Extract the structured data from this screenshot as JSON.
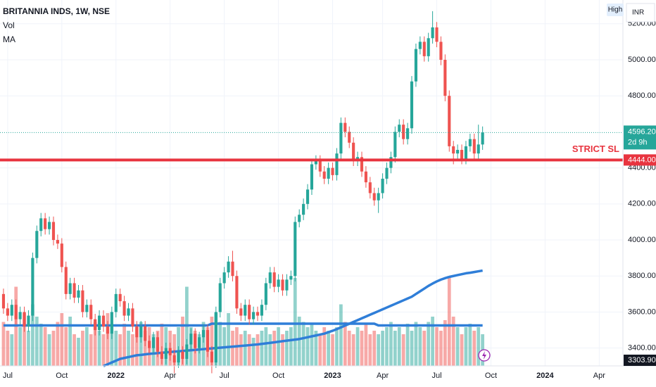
{
  "chart_data": {
    "type": "candlestick",
    "title": "BRITANNIA INDS, 1W, NSE",
    "indicators": [
      "Vol",
      "MA"
    ],
    "button": "High",
    "currency": "INR",
    "categories": [
      null,
      "Jul",
      null,
      null,
      null,
      null,
      null,
      null,
      null,
      null,
      null,
      null,
      null,
      null,
      "Oct",
      null,
      null,
      null,
      null,
      null,
      null,
      null,
      null,
      null,
      null,
      null,
      null,
      "2022",
      null,
      null,
      null,
      null,
      null,
      null,
      null,
      null,
      null,
      null,
      null,
      null,
      "Apr",
      null,
      null,
      null,
      null,
      null,
      null,
      null,
      null,
      null,
      null,
      null,
      null,
      "Jul",
      null,
      null,
      null,
      null,
      null,
      null,
      null,
      null,
      null,
      null,
      null,
      null,
      "Oct",
      null,
      null,
      null,
      null,
      null,
      null,
      null,
      null,
      null,
      null,
      null,
      null,
      "2023",
      null,
      null,
      null,
      null,
      null,
      null,
      null,
      null,
      null,
      null,
      null,
      "Apr",
      null,
      null,
      null,
      null,
      null,
      null,
      null,
      null,
      null,
      null,
      null,
      null,
      "Jul",
      null,
      null,
      null,
      null,
      null,
      null,
      null,
      null,
      null,
      null,
      null,
      null,
      "Oct",
      null,
      null,
      null,
      null,
      null,
      null,
      null,
      null,
      null,
      null,
      null,
      null,
      "2024",
      null,
      null,
      null,
      null,
      null,
      null,
      null,
      null,
      null,
      null,
      null,
      null,
      "Apr",
      null,
      null,
      null,
      null
    ],
    "open": [
      3700,
      3620,
      3580,
      3640,
      3560,
      3600,
      3520,
      3580,
      3900,
      4050,
      4120,
      4060,
      4100,
      4000,
      3980,
      3850,
      3700,
      3760,
      3680,
      3720,
      3600,
      3640,
      3560,
      3500,
      3580,
      3520,
      3480,
      3600,
      3700,
      3660,
      3580,
      3620,
      3520,
      3460,
      3520,
      3440,
      3400,
      3460,
      3380,
      3340,
      3400,
      3360,
      3320,
      3380,
      3340,
      3420,
      3480,
      3400,
      3460,
      3500,
      3380,
      3320,
      3600,
      3760,
      3820,
      3880,
      3800,
      3620,
      3580,
      3640,
      3560,
      3600,
      3580,
      3640,
      3760,
      3820,
      3740,
      3780,
      3720,
      3780,
      3800,
      4100,
      4140,
      4200,
      4280,
      4420,
      4440,
      4380,
      4340,
      4400,
      4360,
      4480,
      4650,
      4600,
      4540,
      4440,
      4460,
      4380,
      4320,
      4260,
      4220,
      4260,
      4340,
      4400,
      4460,
      4600,
      4640,
      4560,
      4620,
      4880,
      5060,
      5100,
      5020,
      5120,
      5180,
      5100,
      5000,
      4800,
      4520,
      4480,
      4500,
      4450,
      4520,
      4560,
      4480,
      4530,
      null,
      null,
      null,
      null,
      null,
      null,
      null,
      null,
      null,
      null,
      null,
      null,
      null,
      null,
      null,
      null,
      null,
      null,
      null,
      null,
      null,
      null,
      null,
      null,
      null,
      null,
      null,
      null,
      null,
      null,
      null,
      null
    ],
    "high": [
      3730,
      3650,
      3670,
      3670,
      3630,
      3630,
      3610,
      3930,
      4080,
      4150,
      4150,
      4130,
      4130,
      4030,
      4010,
      3880,
      3790,
      3790,
      3750,
      3750,
      3670,
      3670,
      3590,
      3610,
      3610,
      3550,
      3630,
      3730,
      3730,
      3690,
      3650,
      3650,
      3550,
      3550,
      3550,
      3470,
      3490,
      3490,
      3410,
      3430,
      3430,
      3390,
      3410,
      3410,
      3450,
      3510,
      3510,
      3490,
      3530,
      3530,
      3410,
      3630,
      3790,
      3850,
      3910,
      3940,
      3830,
      3650,
      3670,
      3670,
      3630,
      3630,
      3670,
      3790,
      3850,
      3850,
      3810,
      3810,
      3810,
      3830,
      4130,
      4170,
      4230,
      4310,
      4450,
      4470,
      4470,
      4410,
      4430,
      4430,
      4510,
      4680,
      4680,
      4630,
      4570,
      4490,
      4490,
      4410,
      4350,
      4290,
      4290,
      4370,
      4430,
      4490,
      4630,
      4670,
      4670,
      4650,
      4910,
      5090,
      5130,
      5130,
      5150,
      5270,
      5210,
      5130,
      5030,
      4830,
      4550,
      4530,
      4530,
      4550,
      4590,
      4590,
      4640,
      4630,
      null,
      null,
      null,
      null,
      null,
      null,
      null,
      null,
      null,
      null,
      null,
      null,
      null,
      null,
      null,
      null,
      null,
      null,
      null,
      null,
      null,
      null,
      null,
      null,
      null,
      null,
      null,
      null,
      null,
      null,
      null,
      null
    ],
    "low": [
      3590,
      3550,
      3550,
      3530,
      3530,
      3490,
      3490,
      3550,
      3870,
      4020,
      4030,
      4030,
      3970,
      3950,
      3820,
      3670,
      3670,
      3650,
      3650,
      3570,
      3570,
      3530,
      3470,
      3470,
      3490,
      3450,
      3450,
      3570,
      3630,
      3550,
      3550,
      3490,
      3430,
      3430,
      3410,
      3370,
      3370,
      3350,
      3310,
      3310,
      3330,
      3260,
      3290,
      3310,
      3310,
      3390,
      3370,
      3370,
      3430,
      3350,
      3260,
      3290,
      3570,
      3730,
      3790,
      3770,
      3590,
      3550,
      3550,
      3530,
      3530,
      3550,
      3550,
      3610,
      3730,
      3710,
      3710,
      3690,
      3690,
      3750,
      3770,
      4070,
      4110,
      4170,
      4250,
      4390,
      4350,
      4310,
      4310,
      4330,
      4330,
      4450,
      4570,
      4510,
      4410,
      4410,
      4350,
      4290,
      4230,
      4190,
      4150,
      4230,
      4310,
      4370,
      4430,
      4570,
      4530,
      4530,
      4590,
      4850,
      5030,
      4990,
      4990,
      5090,
      5070,
      4970,
      4770,
      4490,
      4420,
      4450,
      4420,
      4420,
      4490,
      4450,
      4450,
      4500,
      null,
      null,
      null,
      null,
      null,
      null,
      null,
      null,
      null,
      null,
      null,
      null,
      null,
      null,
      null,
      null,
      null,
      null,
      null,
      null,
      null,
      null,
      null,
      null,
      null,
      null,
      null,
      null,
      null,
      null,
      null,
      null
    ],
    "close": [
      3620,
      3580,
      3640,
      3560,
      3600,
      3520,
      3580,
      3900,
      4050,
      4120,
      4060,
      4100,
      4000,
      3980,
      3850,
      3700,
      3760,
      3680,
      3720,
      3600,
      3640,
      3560,
      3500,
      3580,
      3520,
      3480,
      3600,
      3700,
      3660,
      3580,
      3620,
      3520,
      3460,
      3520,
      3440,
      3400,
      3460,
      3380,
      3340,
      3400,
      3360,
      3320,
      3380,
      3340,
      3420,
      3480,
      3400,
      3460,
      3500,
      3380,
      3320,
      3600,
      3760,
      3820,
      3880,
      3800,
      3620,
      3580,
      3640,
      3560,
      3600,
      3580,
      3640,
      3760,
      3820,
      3740,
      3780,
      3720,
      3780,
      3800,
      4100,
      4140,
      4200,
      4280,
      4420,
      4440,
      4380,
      4340,
      4400,
      4360,
      4480,
      4650,
      4600,
      4540,
      4440,
      4460,
      4380,
      4320,
      4260,
      4220,
      4260,
      4340,
      4400,
      4460,
      4600,
      4640,
      4560,
      4620,
      4880,
      5060,
      5100,
      5020,
      5120,
      5180,
      5100,
      5000,
      4800,
      4520,
      4480,
      4500,
      4450,
      4520,
      4560,
      4480,
      4530,
      4596.2,
      null,
      null,
      null,
      null,
      null,
      null,
      null,
      null,
      null,
      null,
      null,
      null,
      null,
      null,
      null,
      null,
      null,
      null,
      null,
      null,
      null,
      null,
      null,
      null,
      null,
      null,
      null,
      null,
      null,
      null,
      null,
      null
    ],
    "up_color": "#26a69a",
    "down_color": "#ef5350",
    "volume": {
      "ylim": [
        0,
        100
      ],
      "up_color": "rgba(38,166,154,0.5)",
      "down_color": "rgba(239,83,80,0.5)",
      "values": [
        25,
        20,
        18,
        45,
        22,
        30,
        20,
        35,
        28,
        24,
        22,
        18,
        20,
        25,
        30,
        22,
        28,
        18,
        16,
        20,
        22,
        18,
        25,
        20,
        18,
        30,
        22,
        20,
        18,
        24,
        20,
        18,
        22,
        25,
        20,
        22,
        18,
        20,
        24,
        22,
        20,
        18,
        22,
        28,
        45,
        22,
        20,
        18,
        25,
        22,
        28,
        30,
        25,
        22,
        30,
        20,
        22,
        18,
        20,
        18,
        16,
        18,
        20,
        22,
        18,
        20,
        22,
        18,
        20,
        22,
        50,
        28,
        25,
        22,
        24,
        20,
        18,
        22,
        20,
        18,
        22,
        35,
        25,
        20,
        18,
        22,
        20,
        24,
        18,
        20,
        18,
        20,
        22,
        25,
        20,
        22,
        18,
        24,
        20,
        25,
        22,
        20,
        25,
        28,
        22,
        20,
        26,
        50,
        28,
        22,
        18,
        22,
        24,
        20,
        22,
        18,
        null,
        null,
        null,
        null,
        null,
        null,
        null,
        null,
        null,
        null,
        null,
        null,
        null,
        null,
        null,
        null,
        null,
        null,
        null,
        null,
        null,
        null,
        null,
        null,
        null,
        null,
        null,
        null,
        null,
        null,
        null,
        null
      ]
    },
    "volume_ma": {
      "color": "#2f7ed8",
      "values": [
        23,
        23,
        23,
        23,
        23,
        23,
        23,
        23,
        23,
        23,
        23,
        23,
        23,
        23,
        23,
        23,
        23,
        23,
        23,
        23,
        23,
        23,
        23,
        23,
        23,
        23,
        23,
        23,
        23,
        23,
        23,
        23,
        23,
        23,
        23,
        23,
        23,
        23,
        23,
        23,
        23,
        23,
        23,
        23,
        23,
        23,
        23,
        23,
        23,
        23,
        24,
        24,
        24,
        24,
        24,
        24,
        24,
        24,
        24,
        24,
        24,
        24,
        24,
        24,
        24,
        24,
        24,
        24,
        24,
        24,
        24,
        24,
        24,
        24,
        24,
        24,
        24,
        24,
        24,
        24,
        24,
        24,
        24,
        24,
        24,
        24,
        24,
        24,
        24,
        24,
        23,
        23,
        23,
        23,
        23,
        23,
        23,
        23,
        23,
        23,
        23,
        23,
        23,
        23,
        23,
        23,
        23,
        23,
        23,
        23,
        23,
        23,
        23,
        23,
        23,
        23,
        null,
        null,
        null,
        null,
        null,
        null,
        null,
        null,
        null,
        null,
        null,
        null,
        null,
        null,
        null,
        null,
        null,
        null,
        null,
        null,
        null,
        null,
        null,
        null,
        null,
        null,
        null,
        null,
        null,
        null,
        null,
        null
      ]
    },
    "ma": {
      "color": "#2f7ed8",
      "values": [
        null,
        null,
        null,
        null,
        null,
        null,
        null,
        null,
        null,
        null,
        null,
        null,
        null,
        null,
        null,
        null,
        null,
        null,
        null,
        null,
        null,
        null,
        null,
        null,
        3300,
        3310,
        3320,
        3330,
        3340,
        3345,
        3350,
        3355,
        3360,
        3362,
        3365,
        3368,
        3370,
        3372,
        3374,
        3376,
        3378,
        3380,
        3382,
        3384,
        3386,
        3388,
        3390,
        3392,
        3394,
        3396,
        3398,
        3400,
        3402,
        3404,
        3406,
        3408,
        3410,
        3412,
        3414,
        3416,
        3418,
        3420,
        3423,
        3426,
        3429,
        3432,
        3435,
        3438,
        3441,
        3444,
        3447,
        3450,
        3455,
        3460,
        3465,
        3470,
        3475,
        3480,
        3488,
        3496,
        3505,
        3515,
        3525,
        3535,
        3545,
        3555,
        3565,
        3575,
        3585,
        3595,
        3605,
        3615,
        3625,
        3635,
        3645,
        3655,
        3665,
        3675,
        3685,
        3700,
        3715,
        3730,
        3745,
        3758,
        3770,
        3780,
        3788,
        3795,
        3800,
        3805,
        3810,
        3815,
        3818,
        3822,
        3826,
        3830,
        null,
        null,
        null,
        null,
        null,
        null,
        null,
        null,
        null,
        null,
        null,
        null,
        null,
        null,
        null,
        null,
        null,
        null,
        null,
        null,
        null,
        null,
        null,
        null,
        null,
        null,
        null,
        null,
        null,
        null,
        null,
        null
      ]
    },
    "ylim": [
      3301,
      5332
    ],
    "yticks": [
      {
        "value": 3400,
        "label": "3400.00"
      },
      {
        "value": 3600,
        "label": "3600.00"
      },
      {
        "value": 3800,
        "label": "3800.00"
      },
      {
        "value": 4000,
        "label": "4000.00"
      },
      {
        "value": 4200,
        "label": "4200.00"
      },
      {
        "value": 4400,
        "label": "4400.00"
      },
      {
        "value": 4800,
        "label": "4800.00"
      },
      {
        "value": 5000,
        "label": "5000.00"
      },
      {
        "value": 5200,
        "label": "5200.00"
      }
    ],
    "grid": true,
    "last_price": {
      "value": 4596.2,
      "label": "4596.20",
      "countdown": "2d 9h"
    },
    "levels": [
      {
        "name": "STRICT SL",
        "value": 4444,
        "label": "4444.00",
        "color": "#e8343f"
      }
    ],
    "low_marker": {
      "value": 3303.9,
      "label": "3303.90"
    }
  }
}
